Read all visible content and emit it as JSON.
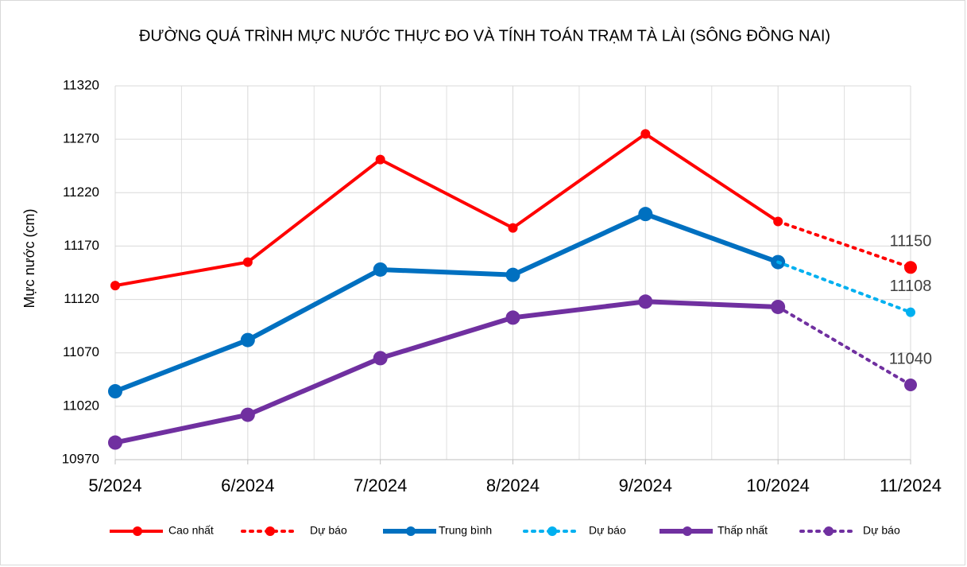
{
  "chart_data": {
    "type": "line",
    "title": "ĐƯỜNG QUÁ TRÌNH MỰC NƯỚC THỰC ĐO VÀ TÍNH TOÁN TRẠM TÀ LÀI (SÔNG ĐỒNG NAI)",
    "y_label": "Mực nước (cm)",
    "categories": [
      "5/2024",
      "6/2024",
      "7/2024",
      "8/2024",
      "9/2024",
      "10/2024",
      "11/2024"
    ],
    "ylim": [
      10970,
      11320
    ],
    "yticks": [
      10970,
      11020,
      11070,
      11120,
      11170,
      11220,
      11270,
      11320
    ],
    "grid": true,
    "legend": "bottom",
    "series": [
      {
        "name": "Cao nhất",
        "color": "#ff0000",
        "dashed": false,
        "values": [
          11133,
          11155,
          11251,
          11187,
          11275,
          11193,
          null
        ]
      },
      {
        "name": "Dự báo",
        "color": "#ff0000",
        "dashed": true,
        "values": [
          null,
          null,
          null,
          null,
          null,
          11193,
          11150
        ]
      },
      {
        "name": "Trung bình",
        "color": "#0070c0",
        "dashed": false,
        "values": [
          11034,
          11082,
          11148,
          11143,
          11200,
          11155,
          null
        ]
      },
      {
        "name": "Dự báo",
        "color": "#00b0f0",
        "dashed": true,
        "values": [
          null,
          null,
          null,
          null,
          null,
          11155,
          11108
        ]
      },
      {
        "name": "Thấp nhất",
        "color": "#7030a0",
        "dashed": false,
        "values": [
          10986,
          11012,
          11065,
          11103,
          11118,
          11113,
          null
        ]
      },
      {
        "name": "Dự báo",
        "color": "#7030a0",
        "dashed": true,
        "values": [
          null,
          null,
          null,
          null,
          null,
          11113,
          11040
        ]
      }
    ]
  }
}
